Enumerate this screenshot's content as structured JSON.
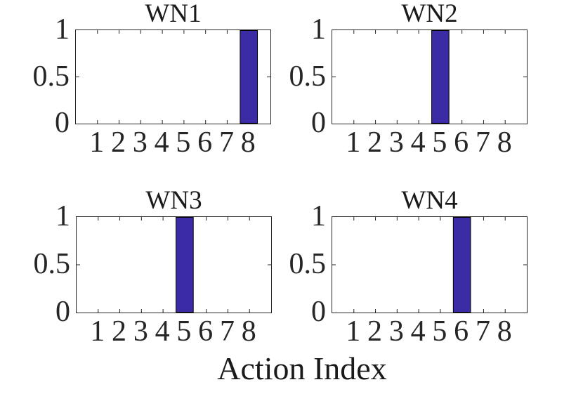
{
  "figure": {
    "xlabel": "Action Index",
    "background_color": "#ffffff",
    "axis_color": "#262626",
    "text_color": "#262626"
  },
  "chart_data": [
    {
      "type": "bar",
      "title": "WN1",
      "categories": [
        "1",
        "2",
        "3",
        "4",
        "5",
        "6",
        "7",
        "8"
      ],
      "values": [
        0,
        0,
        0,
        0,
        0,
        0,
        0,
        1
      ],
      "xlim": [
        0,
        9
      ],
      "ylim": [
        0,
        1
      ],
      "yticks": [
        {
          "label": "0",
          "value": 0
        },
        {
          "label": "0.5",
          "value": 0.5
        },
        {
          "label": "1",
          "value": 1
        }
      ],
      "bar_width": 0.8,
      "bar_color": "#3b2ca6",
      "bar_edge_color": "#000000",
      "grid": false,
      "legend": null
    },
    {
      "type": "bar",
      "title": "WN2",
      "categories": [
        "1",
        "2",
        "3",
        "4",
        "5",
        "6",
        "7",
        "8"
      ],
      "values": [
        0,
        0,
        0,
        0,
        1,
        0,
        0,
        0
      ],
      "xlim": [
        0,
        9
      ],
      "ylim": [
        0,
        1
      ],
      "yticks": [
        {
          "label": "0",
          "value": 0
        },
        {
          "label": "0.5",
          "value": 0.5
        },
        {
          "label": "1",
          "value": 1
        }
      ],
      "bar_width": 0.8,
      "bar_color": "#3b2ca6",
      "bar_edge_color": "#000000",
      "grid": false,
      "legend": null
    },
    {
      "type": "bar",
      "title": "WN3",
      "categories": [
        "1",
        "2",
        "3",
        "4",
        "5",
        "6",
        "7",
        "8"
      ],
      "values": [
        0,
        0,
        0,
        0,
        1,
        0,
        0,
        0
      ],
      "xlim": [
        0,
        9
      ],
      "ylim": [
        0,
        1
      ],
      "yticks": [
        {
          "label": "0",
          "value": 0
        },
        {
          "label": "0.5",
          "value": 0.5
        },
        {
          "label": "1",
          "value": 1
        }
      ],
      "bar_width": 0.8,
      "bar_color": "#3b2ca6",
      "bar_edge_color": "#000000",
      "grid": false,
      "legend": null
    },
    {
      "type": "bar",
      "title": "WN4",
      "categories": [
        "1",
        "2",
        "3",
        "4",
        "5",
        "6",
        "7",
        "8"
      ],
      "values": [
        0,
        0,
        0,
        0,
        0,
        1,
        0,
        0
      ],
      "xlim": [
        0,
        9
      ],
      "ylim": [
        0,
        1
      ],
      "yticks": [
        {
          "label": "0",
          "value": 0
        },
        {
          "label": "0.5",
          "value": 0.5
        },
        {
          "label": "1",
          "value": 1
        }
      ],
      "bar_width": 0.8,
      "bar_color": "#3b2ca6",
      "bar_edge_color": "#000000",
      "grid": false,
      "legend": null
    }
  ]
}
